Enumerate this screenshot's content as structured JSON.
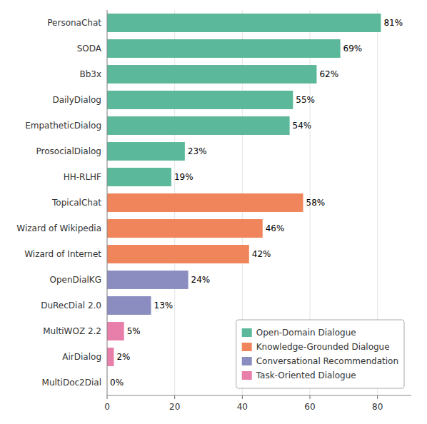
{
  "chart_data": {
    "type": "bar",
    "orientation": "horizontal",
    "categories": [
      "PersonaChat",
      "SODA",
      "Bb3x",
      "DailyDialog",
      "EmpatheticDialog",
      "ProsocialDialog",
      "HH-RLHF",
      "TopicalChat",
      "Wizard of Wikipedia",
      "Wizard of Internet",
      "OpenDialKG",
      "DuRecDial 2.0",
      "MultiWOZ 2.2",
      "AirDialog",
      "MultiDoc2Dial"
    ],
    "values": [
      81,
      69,
      62,
      55,
      54,
      23,
      19,
      58,
      46,
      42,
      24,
      13,
      5,
      2,
      0
    ],
    "value_labels": [
      "81%",
      "69%",
      "62%",
      "55%",
      "54%",
      "23%",
      "19%",
      "58%",
      "46%",
      "42%",
      "24%",
      "13%",
      "5%",
      "2%",
      "0%"
    ],
    "data_labels": true,
    "colors": [
      "#5cb89a",
      "#5cb89a",
      "#5cb89a",
      "#5cb89a",
      "#5cb89a",
      "#5cb89a",
      "#5cb89a",
      "#f0845a",
      "#f0845a",
      "#f0845a",
      "#8b8dc0",
      "#8b8dc0",
      "#e87eaa",
      "#e87eaa",
      "#e87eaa"
    ],
    "legend_entries": [
      {
        "name": "Open-Domain Dialogue",
        "color": "#5cb89a"
      },
      {
        "name": "Knowledge-Grounded Dialogue",
        "color": "#f0845a"
      },
      {
        "name": "Conversational Recommendation",
        "color": "#8b8dc0"
      },
      {
        "name": "Task-Oriented Dialogue",
        "color": "#e87eaa"
      }
    ],
    "legend": "lower right",
    "xlim": [
      0,
      90
    ],
    "xticks": [
      0,
      20,
      40,
      60,
      80
    ],
    "grid": true
  }
}
